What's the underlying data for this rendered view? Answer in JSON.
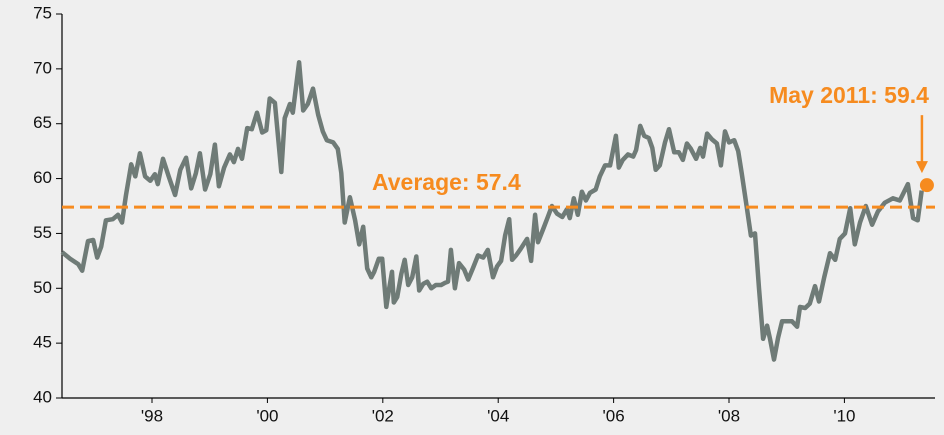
{
  "chart_data": {
    "type": "line",
    "x": [
      1996.44,
      1996.58,
      1996.72,
      1996.79,
      1996.89,
      1996.98,
      1997.05,
      1997.12,
      1997.2,
      1997.32,
      1997.41,
      1997.48,
      1997.55,
      1997.64,
      1997.71,
      1997.79,
      1997.88,
      1997.97,
      1998.05,
      1998.1,
      1998.19,
      1998.29,
      1998.4,
      1998.49,
      1998.59,
      1998.68,
      1998.76,
      1998.83,
      1998.92,
      1999.01,
      1999.09,
      1999.16,
      1999.25,
      1999.35,
      1999.42,
      1999.49,
      1999.56,
      1999.65,
      1999.73,
      1999.82,
      1999.91,
      1999.98,
      2000.04,
      2000.13,
      2000.24,
      2000.3,
      2000.39,
      2000.44,
      2000.55,
      2000.62,
      2000.7,
      2000.79,
      2000.88,
      2000.96,
      2001.03,
      2001.14,
      2001.22,
      2001.28,
      2001.34,
      2001.43,
      2001.52,
      2001.59,
      2001.66,
      2001.73,
      2001.8,
      2001.85,
      2001.93,
      2001.99,
      2002.06,
      2002.11,
      2002.16,
      2002.19,
      2002.25,
      2002.32,
      2002.38,
      2002.44,
      2002.51,
      2002.58,
      2002.63,
      2002.7,
      2002.77,
      2002.84,
      2002.92,
      2003.01,
      2003.08,
      2003.13,
      2003.18,
      2003.25,
      2003.32,
      2003.41,
      2003.48,
      2003.56,
      2003.65,
      2003.74,
      2003.82,
      2003.91,
      2003.98,
      2004.05,
      2004.12,
      2004.19,
      2004.24,
      2004.31,
      2004.39,
      2004.5,
      2004.57,
      2004.64,
      2004.69,
      2004.78,
      2004.86,
      2004.93,
      2005.02,
      2005.11,
      2005.19,
      2005.24,
      2005.31,
      2005.38,
      2005.45,
      2005.52,
      2005.59,
      2005.69,
      2005.76,
      2005.85,
      2005.94,
      2006.04,
      2006.09,
      2006.16,
      2006.25,
      2006.34,
      2006.39,
      2006.46,
      2006.53,
      2006.61,
      2006.67,
      2006.73,
      2006.8,
      2006.89,
      2006.96,
      2007.05,
      2007.13,
      2007.2,
      2007.27,
      2007.34,
      2007.43,
      2007.5,
      2007.55,
      2007.62,
      2007.7,
      2007.79,
      2007.86,
      2007.93,
      2008.0,
      2008.09,
      2008.16,
      2008.22,
      2008.31,
      2008.38,
      2008.45,
      2008.52,
      2008.59,
      2008.66,
      2008.71,
      2008.78,
      2008.85,
      2008.92,
      2008.99,
      2009.09,
      2009.18,
      2009.23,
      2009.32,
      2009.4,
      2009.49,
      2009.56,
      2009.65,
      2009.75,
      2009.84,
      2009.92,
      2010.01,
      2010.1,
      2010.18,
      2010.27,
      2010.37,
      2010.48,
      2010.58,
      2010.7,
      2010.84,
      2010.96,
      2011.1,
      2011.19,
      2011.27,
      2011.34
    ],
    "values": [
      53.3,
      52.7,
      52.2,
      51.6,
      54.3,
      54.4,
      52.8,
      53.8,
      56.2,
      56.3,
      56.7,
      56.0,
      58.5,
      61.3,
      60.2,
      62.3,
      60.2,
      59.8,
      60.4,
      59.5,
      61.8,
      60.2,
      58.5,
      60.8,
      61.9,
      59.1,
      60.5,
      62.3,
      59.0,
      60.4,
      63.1,
      59.3,
      61.0,
      62.2,
      61.5,
      62.7,
      61.8,
      64.6,
      64.5,
      66.0,
      64.2,
      64.4,
      67.3,
      66.9,
      60.6,
      65.5,
      66.8,
      66.0,
      70.6,
      66.2,
      66.8,
      68.2,
      65.8,
      64.3,
      63.5,
      63.3,
      62.7,
      60.5,
      56.0,
      58.3,
      56.2,
      54.0,
      55.6,
      51.8,
      51.0,
      51.5,
      52.7,
      52.7,
      48.3,
      50.0,
      51.5,
      48.7,
      49.2,
      51.3,
      52.6,
      50.3,
      51.0,
      52.9,
      49.8,
      50.4,
      50.6,
      50.0,
      50.3,
      50.3,
      50.5,
      50.6,
      53.5,
      50.0,
      52.3,
      51.7,
      50.8,
      51.8,
      53.0,
      52.8,
      53.5,
      51.0,
      52.0,
      52.5,
      54.8,
      56.3,
      52.6,
      53.0,
      53.6,
      54.5,
      52.5,
      56.7,
      54.2,
      55.4,
      56.5,
      57.5,
      56.8,
      56.5,
      57.2,
      56.4,
      58.2,
      56.7,
      58.8,
      58.0,
      58.7,
      59.0,
      60.2,
      61.2,
      61.2,
      63.9,
      61.0,
      61.7,
      62.2,
      62.0,
      62.6,
      64.8,
      63.9,
      63.7,
      62.8,
      60.8,
      61.2,
      63.3,
      64.5,
      62.4,
      62.4,
      61.7,
      63.2,
      62.7,
      61.8,
      62.8,
      62.0,
      64.1,
      63.6,
      63.2,
      61.2,
      64.3,
      63.3,
      63.5,
      62.5,
      60.5,
      57.3,
      54.8,
      55.0,
      50.0,
      45.4,
      46.6,
      45.4,
      43.5,
      45.5,
      47.0,
      47.0,
      47.0,
      46.5,
      48.3,
      48.2,
      48.6,
      50.2,
      48.8,
      51.0,
      53.2,
      52.6,
      54.5,
      55.0,
      57.3,
      54.0,
      56.0,
      57.5,
      55.8,
      57.0,
      57.8,
      58.2,
      58.0,
      59.5,
      56.4,
      56.2,
      58.9
    ],
    "color": "#6f7b77",
    "xlim": [
      1996.44,
      2011.57
    ],
    "xticks": [
      {
        "value": 1998,
        "label": "'98"
      },
      {
        "value": 2000,
        "label": "'00"
      },
      {
        "value": 2002,
        "label": "'02"
      },
      {
        "value": 2004,
        "label": "'04"
      },
      {
        "value": 2006,
        "label": "'06"
      },
      {
        "value": 2008,
        "label": "'08"
      },
      {
        "value": 2010,
        "label": "'10"
      }
    ],
    "ylim": [
      40,
      75
    ],
    "yticks": [
      40,
      45,
      50,
      55,
      60,
      65,
      70,
      75
    ],
    "average": {
      "label": "Average: 57.4",
      "value": 57.4,
      "color": "#f68b1f"
    },
    "highlight": {
      "label": "May 2011: 59.4",
      "x": 2011.43,
      "value": 59.4,
      "color": "#f68b1f"
    }
  }
}
